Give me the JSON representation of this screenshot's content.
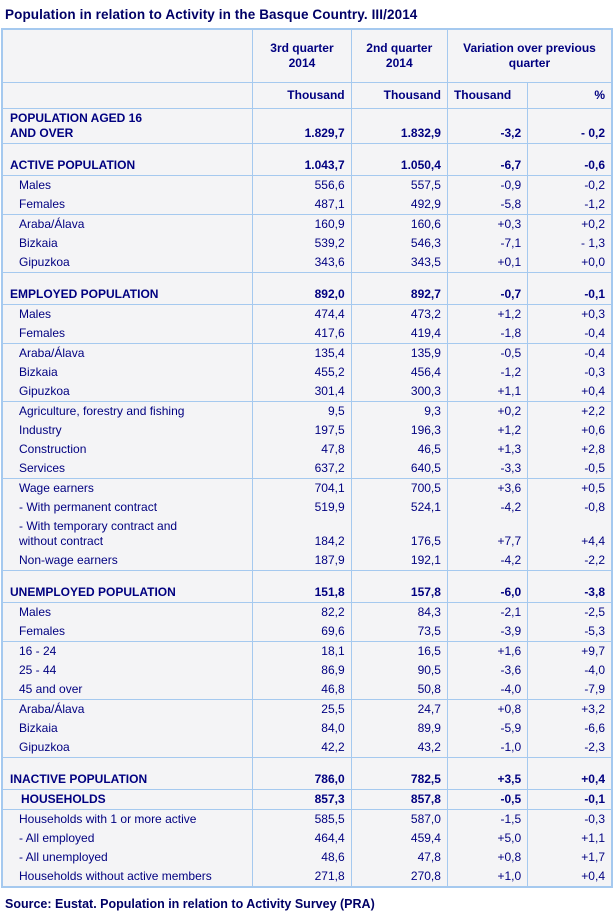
{
  "title": "Population in relation to Activity in the Basque Country. III/2014",
  "source": "Source: Eustat. Population in relation to Activity Survey (PRA)",
  "colors": {
    "text_navy": "#000080",
    "title_navy": "#000066",
    "border_blue": "#a5c9ef",
    "cell_background": "#f4f4f6"
  },
  "table": {
    "header": {
      "q3": "3rd quarter 2014",
      "q2": "2nd quarter 2014",
      "variation": "Variation over previous quarter",
      "units": [
        "Thousand",
        "Thousand",
        "Thousand",
        "%"
      ]
    },
    "rows": [
      {
        "label": "POPULATION AGED 16\nAND OVER",
        "q3": "1.829,7",
        "q2": "1.832,9",
        "vt": "-3,2",
        "vp": "- 0,2",
        "bold": true,
        "indent": 0
      },
      {
        "label": "ACTIVE POPULATION",
        "q3": "1.043,7",
        "q2": "1.050,4",
        "vt": "-6,7",
        "vp": "-0,6",
        "bold": true,
        "indent": 0,
        "line": true,
        "spacer": true
      },
      {
        "label": "Males",
        "q3": "556,6",
        "q2": "557,5",
        "vt": "-0,9",
        "vp": "-0,2",
        "indent": 1,
        "line": true
      },
      {
        "label": "Females",
        "q3": "487,1",
        "q2": "492,9",
        "vt": "-5,8",
        "vp": "-1,2",
        "indent": 1
      },
      {
        "label": "Araba/Álava",
        "q3": "160,9",
        "q2": "160,6",
        "vt": "+0,3",
        "vp": "+0,2",
        "indent": 1,
        "line": true
      },
      {
        "label": "Bizkaia",
        "q3": "539,2",
        "q2": "546,3",
        "vt": "-7,1",
        "vp": "- 1,3",
        "indent": 1
      },
      {
        "label": "Gipuzkoa",
        "q3": "343,6",
        "q2": "343,5",
        "vt": "+0,1",
        "vp": "+0,0",
        "indent": 1
      },
      {
        "label": "EMPLOYED POPULATION",
        "q3": "892,0",
        "q2": "892,7",
        "vt": "-0,7",
        "vp": "-0,1",
        "bold": true,
        "indent": 0,
        "line": true,
        "spacer": true
      },
      {
        "label": "Males",
        "q3": "474,4",
        "q2": "473,2",
        "vt": "+1,2",
        "vp": "+0,3",
        "indent": 1,
        "line": true
      },
      {
        "label": "Females",
        "q3": "417,6",
        "q2": "419,4",
        "vt": "-1,8",
        "vp": "-0,4",
        "indent": 1
      },
      {
        "label": "Araba/Álava",
        "q3": "135,4",
        "q2": "135,9",
        "vt": "-0,5",
        "vp": "-0,4",
        "indent": 1,
        "line": true
      },
      {
        "label": "Bizkaia",
        "q3": "455,2",
        "q2": "456,4",
        "vt": "-1,2",
        "vp": "-0,3",
        "indent": 1
      },
      {
        "label": "Gipuzkoa",
        "q3": "301,4",
        "q2": "300,3",
        "vt": "+1,1",
        "vp": "+0,4",
        "indent": 1
      },
      {
        "label": "Agriculture, forestry and fishing",
        "q3": "9,5",
        "q2": "9,3",
        "vt": "+0,2",
        "vp": "+2,2",
        "indent": 1,
        "line": true
      },
      {
        "label": "Industry",
        "q3": "197,5",
        "q2": "196,3",
        "vt": "+1,2",
        "vp": "+0,6",
        "indent": 1
      },
      {
        "label": "Construction",
        "q3": "47,8",
        "q2": "46,5",
        "vt": "+1,3",
        "vp": "+2,8",
        "indent": 1
      },
      {
        "label": "Services",
        "q3": "637,2",
        "q2": "640,5",
        "vt": "-3,3",
        "vp": "-0,5",
        "indent": 1
      },
      {
        "label": "Wage earners",
        "q3": "704,1",
        "q2": "700,5",
        "vt": "+3,6",
        "vp": "+0,5",
        "indent": 1,
        "line": true
      },
      {
        "label": "- With permanent contract",
        "q3": "519,9",
        "q2": "524,1",
        "vt": "-4,2",
        "vp": "-0,8",
        "indent": 1
      },
      {
        "label": "- With temporary contract and\nwithout contract",
        "q3": "184,2",
        "q2": "176,5",
        "vt": "+7,7",
        "vp": "+4,4",
        "indent": 1
      },
      {
        "label": "Non-wage earners",
        "q3": "187,9",
        "q2": "192,1",
        "vt": "-4,2",
        "vp": "-2,2",
        "indent": 1
      },
      {
        "label": "UNEMPLOYED POPULATION",
        "q3": "151,8",
        "q2": "157,8",
        "vt": "-6,0",
        "vp": "-3,8",
        "bold": true,
        "indent": 0,
        "line": true,
        "spacer": true
      },
      {
        "label": "Males",
        "q3": "82,2",
        "q2": "84,3",
        "vt": "-2,1",
        "vp": "-2,5",
        "indent": 1,
        "line": true
      },
      {
        "label": "Females",
        "q3": "69,6",
        "q2": "73,5",
        "vt": "-3,9",
        "vp": "-5,3",
        "indent": 1
      },
      {
        "label": "16 - 24",
        "q3": "18,1",
        "q2": "16,5",
        "vt": "+1,6",
        "vp": "+9,7",
        "indent": 1,
        "line": true
      },
      {
        "label": "25 - 44",
        "q3": "86,9",
        "q2": "90,5",
        "vt": "-3,6",
        "vp": "-4,0",
        "indent": 1
      },
      {
        "label": "45 and over",
        "q3": "46,8",
        "q2": "50,8",
        "vt": "-4,0",
        "vp": "-7,9",
        "indent": 1
      },
      {
        "label": "Araba/Álava",
        "q3": "25,5",
        "q2": "24,7",
        "vt": "+0,8",
        "vp": "+3,2",
        "indent": 1,
        "line": true
      },
      {
        "label": "Bizkaia",
        "q3": "84,0",
        "q2": "89,9",
        "vt": "-5,9",
        "vp": "-6,6",
        "indent": 1
      },
      {
        "label": "Gipuzkoa",
        "q3": "42,2",
        "q2": "43,2",
        "vt": "-1,0",
        "vp": "-2,3",
        "indent": 1
      },
      {
        "label": "INACTIVE POPULATION",
        "q3": "786,0",
        "q2": "782,5",
        "vt": "+3,5",
        "vp": "+0,4",
        "bold": true,
        "indent": 0,
        "line": true,
        "spacer": true
      },
      {
        "label": "HOUSEHOLDS",
        "q3": "857,3",
        "q2": "857,8",
        "vt": "-0,5",
        "vp": "-0,1",
        "bold": true,
        "indent": 2,
        "line": true
      },
      {
        "label": "Households with 1 or more active",
        "q3": "585,5",
        "q2": "587,0",
        "vt": "-1,5",
        "vp": "-0,3",
        "indent": 1,
        "line": true
      },
      {
        "label": "- All employed",
        "q3": "464,4",
        "q2": "459,4",
        "vt": "+5,0",
        "vp": "+1,1",
        "indent": 1
      },
      {
        "label": "- All unemployed",
        "q3": "48,6",
        "q2": "47,8",
        "vt": "+0,8",
        "vp": "+1,7",
        "indent": 1
      },
      {
        "label": "Households without active members",
        "q3": "271,8",
        "q2": "270,8",
        "vt": "+1,0",
        "vp": "+0,4",
        "indent": 1
      }
    ]
  }
}
